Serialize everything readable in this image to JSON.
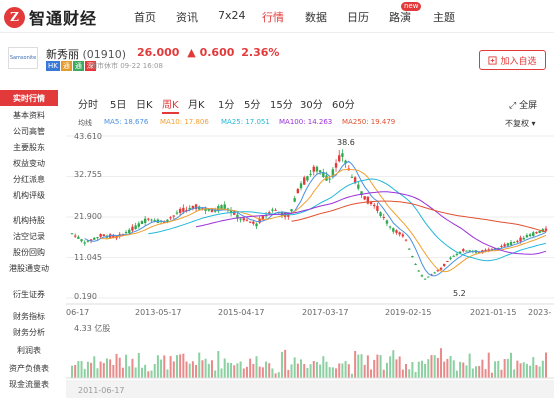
{
  "nav": {
    "brand": "智通财经",
    "items": [
      "首页",
      "资讯",
      "7x24",
      "行情",
      "数据",
      "日历",
      "路演",
      "主题"
    ],
    "active": "行情",
    "badge": "new"
  },
  "stock": {
    "logo_text": "Samsonite",
    "name": "新秀丽",
    "code": "(01910)",
    "price": "26.000",
    "change": "▲ 0.600",
    "change_pct": "2.36%",
    "tags": [
      "HK",
      "通",
      "通",
      "深"
    ],
    "status": "闭市休市 09-22 16:08",
    "watch_label": "加入自选"
  },
  "sidebar": {
    "items": [
      "实时行情",
      "基本资料",
      "公司高管",
      "主要股东",
      "权益变动",
      "分红派息",
      "机构评级",
      "机构持股",
      "沽空记录",
      "股份回购",
      "港股通变动",
      "衍生证券",
      "财务指标",
      "财务分析",
      "利润表",
      "资产负债表",
      "现金流量表"
    ],
    "active": "实时行情"
  },
  "tabs": {
    "items": [
      "分时",
      "5日",
      "日K",
      "周K",
      "月K",
      "1分",
      "5分",
      "15分",
      "30分",
      "60分"
    ],
    "active": "周K",
    "fullscreen": "全屏"
  },
  "indicators": {
    "label": "均线",
    "items": [
      {
        "text": "MA5: 18.676",
        "color": "#4a90e2"
      },
      {
        "text": "MA10: 17.806",
        "color": "#f0a030"
      },
      {
        "text": "MA25: 17.051",
        "color": "#20b8d8"
      },
      {
        "text": "MA100: 14.263",
        "color": "#9b30d9"
      },
      {
        "text": "MA250: 19.479",
        "color": "#e05030"
      }
    ],
    "adjust": "不复权"
  },
  "chart_data": {
    "type": "candlestick",
    "y_ticks": [
      "43.610",
      "32.755",
      "21.900",
      "11.045",
      "0.190"
    ],
    "x_ticks": [
      "06-17",
      "2013-05-17",
      "2015-04-17",
      "2017-03-17",
      "2019-02-15",
      "2021-01-15",
      "2023-"
    ],
    "high_label": "38.6",
    "low_label": "5.2",
    "volume_label": "4.33 亿股",
    "volume_axis_date": "2011-06-17",
    "ylim": [
      0.19,
      43.61
    ],
    "close_path": [
      [
        "2011-06",
        17.5
      ],
      [
        "2011-10",
        15.0
      ],
      [
        "2012-03",
        17.0
      ],
      [
        "2012-08",
        16.5
      ],
      [
        "2013-01",
        19.0
      ],
      [
        "2013-05",
        21.5
      ],
      [
        "2013-10",
        20.5
      ],
      [
        "2014-03",
        23.5
      ],
      [
        "2014-08",
        24.5
      ],
      [
        "2015-01",
        23.5
      ],
      [
        "2015-04",
        25.0
      ],
      [
        "2015-09",
        21.5
      ],
      [
        "2016-02",
        20.0
      ],
      [
        "2016-07",
        24.0
      ],
      [
        "2016-12",
        22.0
      ],
      [
        "2017-03",
        30.0
      ],
      [
        "2017-08",
        35.0
      ],
      [
        "2017-12",
        32.0
      ],
      [
        "2018-04",
        38.6
      ],
      [
        "2018-07",
        33.0
      ],
      [
        "2018-11",
        27.0
      ],
      [
        "2019-02",
        25.0
      ],
      [
        "2019-07",
        19.0
      ],
      [
        "2019-11",
        16.5
      ],
      [
        "2020-03",
        8.0
      ],
      [
        "2020-05",
        5.2
      ],
      [
        "2020-10",
        8.0
      ],
      [
        "2021-01",
        11.0
      ],
      [
        "2021-05",
        13.0
      ],
      [
        "2021-10",
        12.5
      ],
      [
        "2022-03",
        13.5
      ],
      [
        "2022-08",
        15.0
      ],
      [
        "2023-01",
        17.0
      ],
      [
        "2023-06",
        18.5
      ]
    ]
  }
}
